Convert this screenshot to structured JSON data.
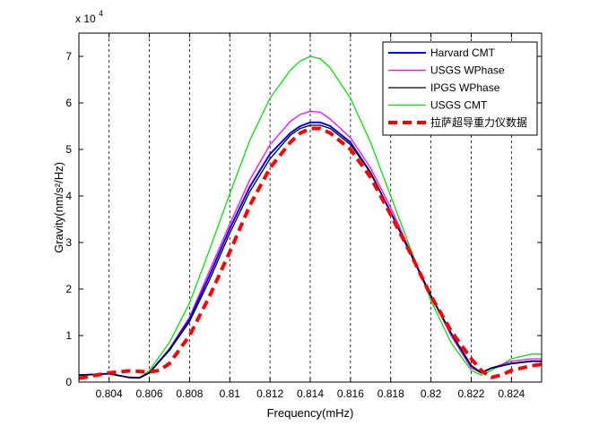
{
  "chart_data": {
    "type": "line",
    "title": "",
    "xlabel": "Frequency(mHz)",
    "ylabel": "Gravity(nm/s²/Hz)",
    "y_multiplier_label": "x 10",
    "y_multiplier_exponent": "4",
    "xlim": [
      0.8025,
      0.8255
    ],
    "ylim": [
      0,
      75000
    ],
    "x_ticks": [
      0.804,
      0.806,
      0.808,
      0.81,
      0.812,
      0.814,
      0.816,
      0.818,
      0.82,
      0.822,
      0.824
    ],
    "x_tick_labels": [
      "0.804",
      "0.806",
      "0.808",
      "0.81",
      "0.812",
      "0.814",
      "0.816",
      "0.818",
      "0.82",
      "0.822",
      "0.824"
    ],
    "y_ticks": [
      0,
      10000,
      20000,
      30000,
      40000,
      50000,
      60000,
      70000
    ],
    "y_tick_labels": [
      "0",
      "1",
      "2",
      "3",
      "4",
      "5",
      "6",
      "7"
    ],
    "grid": "x-dashed",
    "legend_position": "top-right",
    "series": [
      {
        "name": "Harvard CMT",
        "color": "#0000ff",
        "width": 2,
        "dash": "",
        "x": [
          0.8025,
          0.804,
          0.805,
          0.8055,
          0.806,
          0.807,
          0.808,
          0.809,
          0.81,
          0.811,
          0.812,
          0.813,
          0.8135,
          0.814,
          0.8145,
          0.815,
          0.816,
          0.817,
          0.818,
          0.819,
          0.82,
          0.821,
          0.822,
          0.8225,
          0.823,
          0.824,
          0.825,
          0.8255
        ],
        "y": [
          1500,
          1800,
          1000,
          900,
          2000,
          7000,
          13500,
          23000,
          33000,
          42000,
          49000,
          53500,
          55000,
          55800,
          55800,
          55000,
          51500,
          45000,
          36500,
          27500,
          18500,
          10500,
          3500,
          2000,
          3000,
          4000,
          4500,
          4500
        ]
      },
      {
        "name": "USGS WPhase",
        "color": "#ff00ff",
        "width": 1.3,
        "dash": "",
        "x": [
          0.8025,
          0.804,
          0.805,
          0.8055,
          0.806,
          0.807,
          0.808,
          0.809,
          0.81,
          0.811,
          0.812,
          0.813,
          0.8135,
          0.814,
          0.8145,
          0.815,
          0.816,
          0.817,
          0.818,
          0.819,
          0.82,
          0.821,
          0.822,
          0.8225,
          0.823,
          0.824,
          0.825,
          0.8255
        ],
        "y": [
          1500,
          1800,
          1000,
          900,
          2000,
          7200,
          14000,
          24000,
          34000,
          43500,
          51000,
          56000,
          57500,
          58200,
          58000,
          56500,
          52500,
          46000,
          37500,
          28000,
          18500,
          10000,
          3000,
          2000,
          3000,
          4500,
          5000,
          5000
        ]
      },
      {
        "name": "IPGS WPhase",
        "color": "#000000",
        "width": 1.3,
        "dash": "",
        "x": [
          0.8025,
          0.804,
          0.805,
          0.8055,
          0.806,
          0.807,
          0.808,
          0.809,
          0.81,
          0.811,
          0.812,
          0.813,
          0.8135,
          0.814,
          0.8145,
          0.815,
          0.816,
          0.817,
          0.818,
          0.819,
          0.82,
          0.821,
          0.822,
          0.8225,
          0.823,
          0.824,
          0.825,
          0.8255
        ],
        "y": [
          1500,
          1800,
          1000,
          900,
          2000,
          6800,
          13000,
          22000,
          32000,
          41000,
          48000,
          53000,
          54500,
          55200,
          55200,
          54500,
          51000,
          45000,
          36500,
          27500,
          18500,
          10500,
          3500,
          2000,
          3000,
          4000,
          4500,
          4500
        ]
      },
      {
        "name": "USGS CMT",
        "color": "#00e600",
        "width": 1.3,
        "dash": "",
        "x": [
          0.8025,
          0.804,
          0.805,
          0.8055,
          0.806,
          0.807,
          0.808,
          0.809,
          0.81,
          0.811,
          0.812,
          0.813,
          0.8135,
          0.814,
          0.8145,
          0.815,
          0.816,
          0.817,
          0.818,
          0.819,
          0.82,
          0.821,
          0.822,
          0.8225,
          0.823,
          0.824,
          0.825,
          0.8255
        ],
        "y": [
          1500,
          1800,
          1000,
          900,
          2500,
          8500,
          17000,
          28500,
          40500,
          52000,
          61000,
          67000,
          69000,
          70000,
          69500,
          67500,
          61000,
          51500,
          40000,
          28500,
          17500,
          8500,
          2500,
          1500,
          2500,
          5000,
          6000,
          6000
        ]
      },
      {
        "name": "拉萨超导重力仪数据",
        "color": "#ff0000",
        "width": 4,
        "dash": "10,6",
        "x": [
          0.8025,
          0.803,
          0.804,
          0.805,
          0.806,
          0.8065,
          0.807,
          0.808,
          0.809,
          0.81,
          0.811,
          0.812,
          0.813,
          0.8135,
          0.814,
          0.8145,
          0.815,
          0.816,
          0.817,
          0.818,
          0.819,
          0.82,
          0.821,
          0.822,
          0.8225,
          0.823,
          0.8235,
          0.824,
          0.825,
          0.8255
        ],
        "y": [
          800,
          1200,
          2000,
          2400,
          2200,
          2500,
          4000,
          10000,
          18500,
          28000,
          38000,
          46000,
          51500,
          53500,
          54500,
          54500,
          53500,
          50000,
          44000,
          36000,
          27500,
          18500,
          11000,
          5000,
          2500,
          1000,
          1500,
          2500,
          3500,
          3800
        ]
      }
    ]
  }
}
